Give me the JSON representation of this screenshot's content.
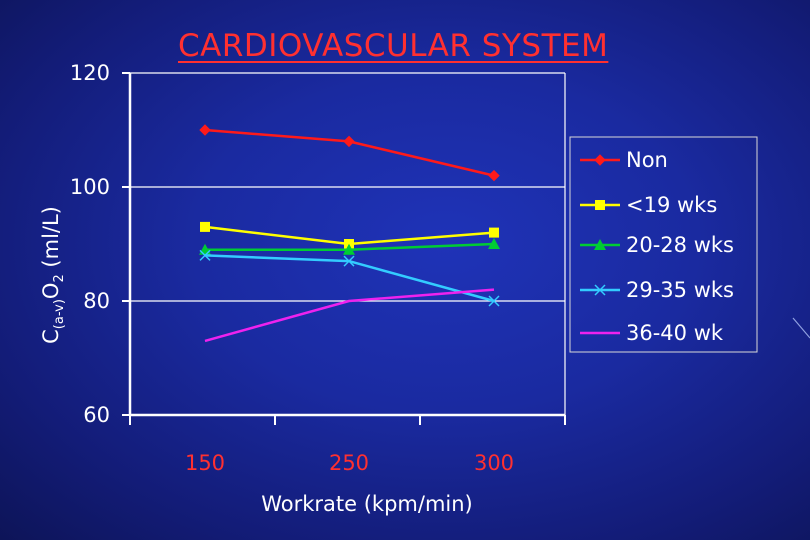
{
  "slide": {
    "title": "CARDIOVASCULAR SYSTEM"
  },
  "chart_data": {
    "type": "line",
    "x": [
      150,
      250,
      300
    ],
    "xtick_labels": [
      "150",
      "250",
      "300"
    ],
    "xlabel": "Workrate (kpm/min)",
    "ylabel": {
      "prefix": "C",
      "subscript": "(a-v)",
      "middle": "O",
      "subscript2": "2",
      "suffix": " (ml/L)"
    },
    "ylim": [
      60,
      120
    ],
    "yticks": [
      60,
      80,
      100,
      120
    ],
    "ytick_labels": [
      "60",
      "80",
      "100",
      "120"
    ],
    "grid": "horizontal major",
    "legend_position": "right",
    "series": [
      {
        "name": "Non",
        "values": [
          110,
          108,
          102
        ],
        "color": "#ff1a1a",
        "marker": "diamond"
      },
      {
        "name": "<19 wks",
        "values": [
          93,
          90,
          92
        ],
        "color": "#ffff00",
        "marker": "square"
      },
      {
        "name": "20-28 wks",
        "values": [
          89,
          89,
          90
        ],
        "color": "#00cc33",
        "marker": "triangle"
      },
      {
        "name": "29-35 wks",
        "values": [
          88,
          87,
          80
        ],
        "color": "#33ccff",
        "marker": "x"
      },
      {
        "name": "36-40 wk",
        "values": [
          73,
          80,
          82
        ],
        "color": "#ee22ee",
        "marker": "none"
      }
    ]
  },
  "colors": {
    "axis": "#ffffff",
    "x_tick_text": "#ff3030",
    "title": "#ff3030",
    "legend_border": "#d8d8d8"
  }
}
